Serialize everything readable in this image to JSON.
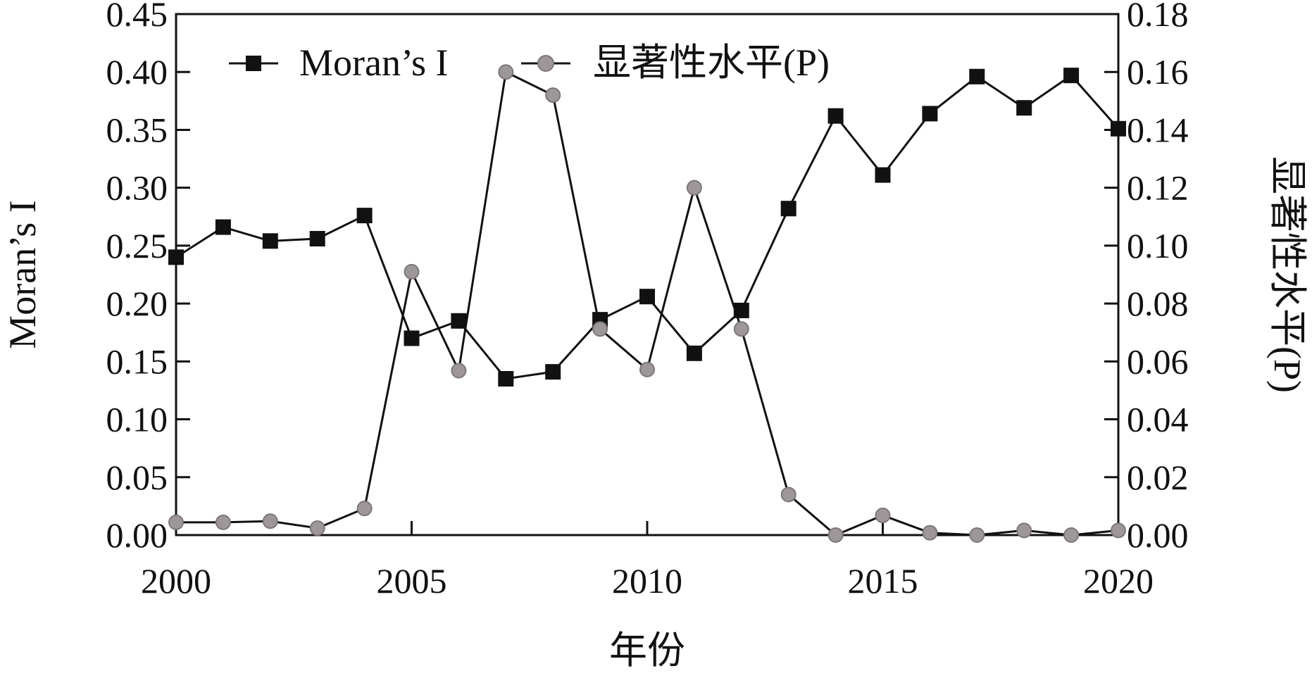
{
  "chart_data": {
    "type": "line",
    "title": "",
    "xlabel": "年份",
    "ylabel": "Moran’s I",
    "ylabel_right": "显著性水平(P)",
    "x": [
      2000,
      2001,
      2002,
      2003,
      2004,
      2005,
      2006,
      2007,
      2008,
      2009,
      2010,
      2011,
      2012,
      2013,
      2014,
      2015,
      2016,
      2017,
      2018,
      2019,
      2020
    ],
    "xlim": [
      2000,
      2020
    ],
    "xticks": [
      2000,
      2005,
      2010,
      2015,
      2020
    ],
    "xtick_labels": [
      "2000",
      "2005",
      "2010",
      "2015",
      "2020"
    ],
    "ylim": [
      0,
      0.45
    ],
    "yticks": [
      "0.00",
      "0.05",
      "0.10",
      "0.15",
      "0.20",
      "0.25",
      "0.30",
      "0.35",
      "0.40",
      "0.45"
    ],
    "ylim_right": [
      0,
      0.18
    ],
    "yticks_right": [
      "0.00",
      "0.02",
      "0.04",
      "0.06",
      "0.08",
      "0.10",
      "0.12",
      "0.14",
      "0.16",
      "0.18"
    ],
    "grid": false,
    "legend_position": "top-left",
    "series": [
      {
        "name": "Moran’s I",
        "axis": "left",
        "marker": "square",
        "color": "#111111",
        "values": [
          0.24,
          0.266,
          0.254,
          0.256,
          0.276,
          0.17,
          0.185,
          0.135,
          0.141,
          0.186,
          0.206,
          0.157,
          0.194,
          0.282,
          0.362,
          0.311,
          0.364,
          0.396,
          0.369,
          0.397,
          0.351
        ]
      },
      {
        "name": "显著性水平(P)",
        "axis": "right",
        "marker": "circle",
        "color": "#111111",
        "marker_color": "#9e9799",
        "values": [
          0.0044,
          0.0044,
          0.0048,
          0.0024,
          0.0092,
          0.091,
          0.0568,
          0.16,
          0.152,
          0.0712,
          0.0572,
          0.12,
          0.0712,
          0.014,
          0.0,
          0.0068,
          0.0008,
          0.0,
          0.0016,
          0.0,
          0.0016
        ]
      }
    ]
  }
}
